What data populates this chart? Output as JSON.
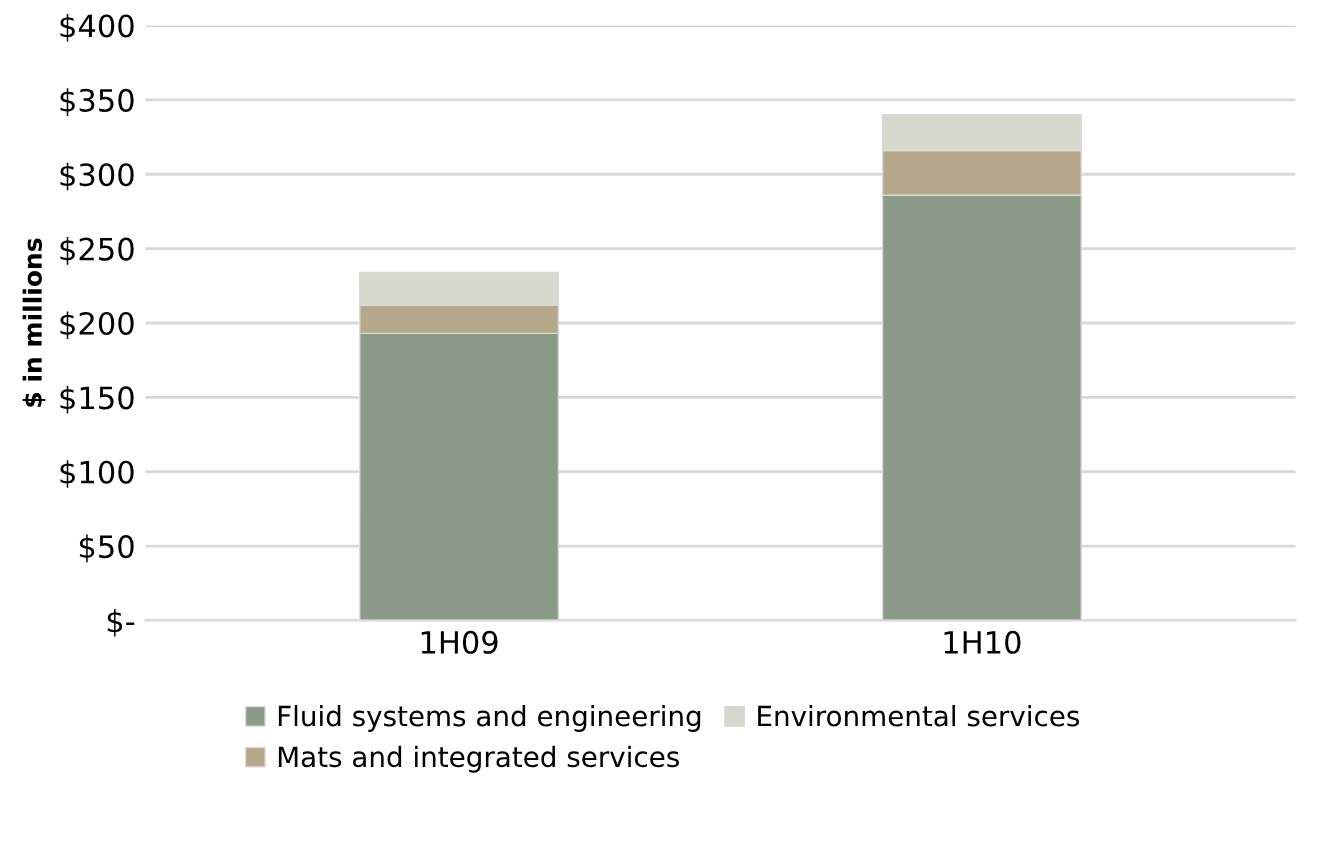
{
  "chart_data": {
    "type": "bar",
    "stacked": true,
    "ylabel": "$ in millions",
    "categories": [
      "1H09",
      "1H10"
    ],
    "series": [
      {
        "name": "Fluid systems and engineering",
        "color": "#8a9b88",
        "values": [
          193,
          286
        ]
      },
      {
        "name": "Mats and integrated services",
        "color": "#b5a88a",
        "values": [
          19,
          30
        ]
      },
      {
        "name": "Environmental services",
        "color": "#d5d8ca",
        "values": [
          22,
          24
        ]
      }
    ],
    "ylim": [
      0,
      400
    ],
    "yticks": [
      {
        "value": 0,
        "label": "$-"
      },
      {
        "value": 50,
        "label": "$50"
      },
      {
        "value": 100,
        "label": "$100"
      },
      {
        "value": 150,
        "label": "$150"
      },
      {
        "value": 200,
        "label": "$200"
      },
      {
        "value": 250,
        "label": "$250"
      },
      {
        "value": 300,
        "label": "$300"
      },
      {
        "value": 350,
        "label": "$350"
      },
      {
        "value": 400,
        "label": "$400"
      }
    ],
    "grid": "y",
    "legend": "bottom"
  }
}
